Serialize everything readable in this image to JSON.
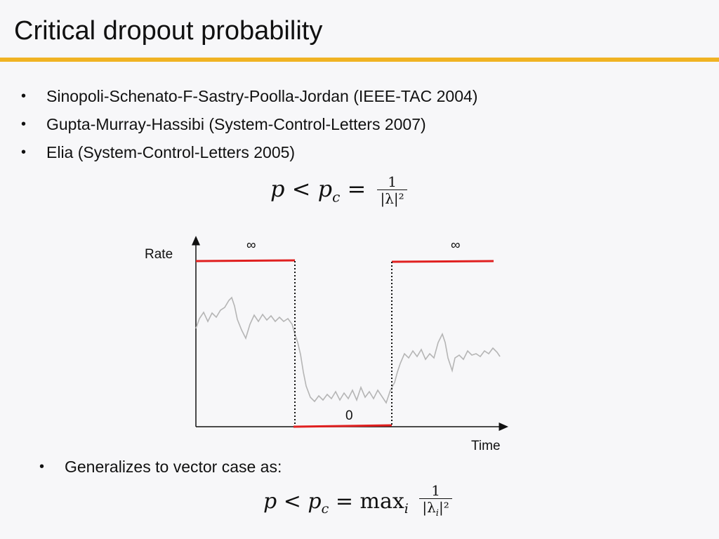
{
  "slide": {
    "title": "Critical dropout probability",
    "accent_color": "#f0b323",
    "bullets": [
      {
        "marker": "•",
        "text": "Sinopoli-Schenato-F-Sastry-Poolla-Jordan (IEEE-TAC 2004)"
      },
      {
        "marker": "•",
        "text": "Gupta-Murray-Hassibi (System-Control-Letters 2007)"
      },
      {
        "marker": "•",
        "text": "Elia (System-Control-Letters 2005)"
      }
    ],
    "formula1": {
      "lhs": "p < p",
      "sub": "c",
      "eq": " =",
      "num": "1",
      "den": "|λ|²"
    },
    "diagram": {
      "y_label": "Rate",
      "x_label": "Time",
      "infinity_left": "∞",
      "infinity_right": "∞",
      "zero_label": "0",
      "rate_color": "#e02020",
      "signal_color": "#b5b5b5"
    },
    "bullet2": {
      "marker": "•",
      "text": "Generalizes to vector case as:"
    },
    "formula2": {
      "lhs": "p < p",
      "sub": "c",
      "eq": " = max",
      "sub2": "i",
      "num": "1",
      "den": "|λ",
      "den_sub": "i",
      "den_tail": "|²"
    }
  }
}
